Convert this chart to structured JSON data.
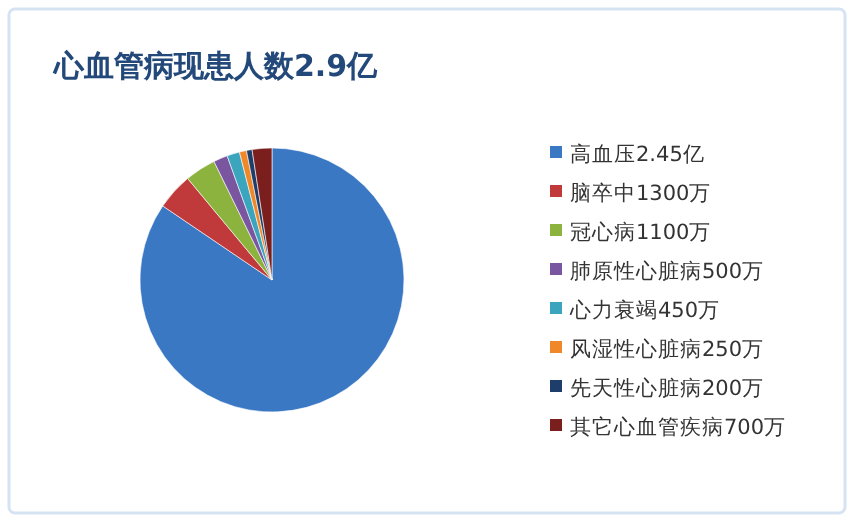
{
  "chart_data": {
    "type": "pie",
    "title": "心血管病现患人数2.9亿",
    "categories": [
      "高血压2.45亿",
      "脑卒中1300万",
      "冠心病1100万",
      "肺原性心脏病500万",
      "心力衰竭450万",
      "风湿性心脏病250万",
      "先天性心脏病200万",
      "其它心血管疾病700万"
    ],
    "values": [
      24500,
      1300,
      1100,
      500,
      450,
      250,
      200,
      700
    ],
    "colors": [
      "#3a78c4",
      "#c0393b",
      "#8db33f",
      "#7a55a0",
      "#3aa5bd",
      "#f0882a",
      "#1f3d6b",
      "#7a1e1e"
    ],
    "legend": "right"
  }
}
